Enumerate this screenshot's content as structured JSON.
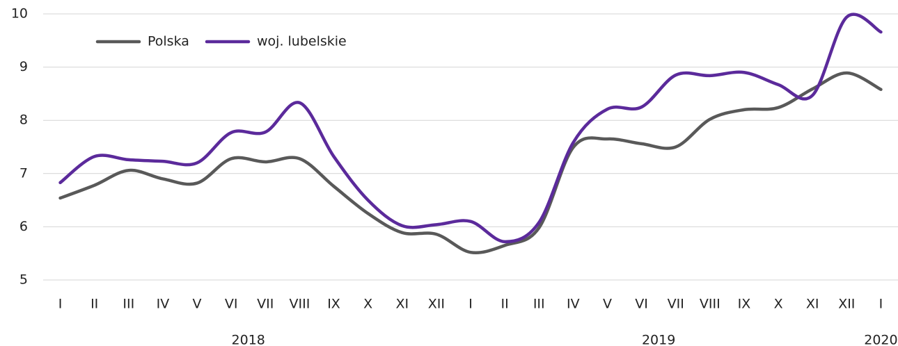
{
  "chart_data": {
    "type": "line",
    "categories": [
      "I",
      "II",
      "III",
      "IV",
      "V",
      "VI",
      "VII",
      "VIII",
      "IX",
      "X",
      "XI",
      "XII",
      "I",
      "II",
      "III",
      "IV",
      "V",
      "VI",
      "VII",
      "VIII",
      "IX",
      "X",
      "XI",
      "XII",
      "I"
    ],
    "x_groups": [
      {
        "label": "2018",
        "count": 12
      },
      {
        "label": "2019",
        "count": 12
      },
      {
        "label": "2020",
        "count": 1
      }
    ],
    "series": [
      {
        "name": "Polska",
        "color": "#595959",
        "values": [
          6.54,
          6.78,
          7.06,
          6.9,
          6.82,
          7.28,
          7.22,
          7.28,
          6.76,
          6.25,
          5.89,
          5.86,
          5.52,
          5.65,
          5.98,
          7.49,
          7.65,
          7.56,
          7.5,
          8.02,
          8.2,
          8.24,
          8.59,
          8.89,
          8.58
        ]
      },
      {
        "name": "woj. lubelskie",
        "color": "#5b2a9b",
        "values": [
          6.83,
          7.32,
          7.26,
          7.23,
          7.2,
          7.77,
          7.78,
          8.33,
          7.32,
          6.5,
          6.02,
          6.04,
          6.1,
          5.72,
          6.08,
          7.58,
          8.21,
          8.25,
          8.85,
          8.84,
          8.9,
          8.67,
          8.47,
          9.94,
          9.66
        ]
      }
    ],
    "ylim": [
      5,
      10
    ],
    "yticks": [
      5,
      6,
      7,
      8,
      9,
      10
    ],
    "grid": true,
    "legend": "top-left"
  }
}
